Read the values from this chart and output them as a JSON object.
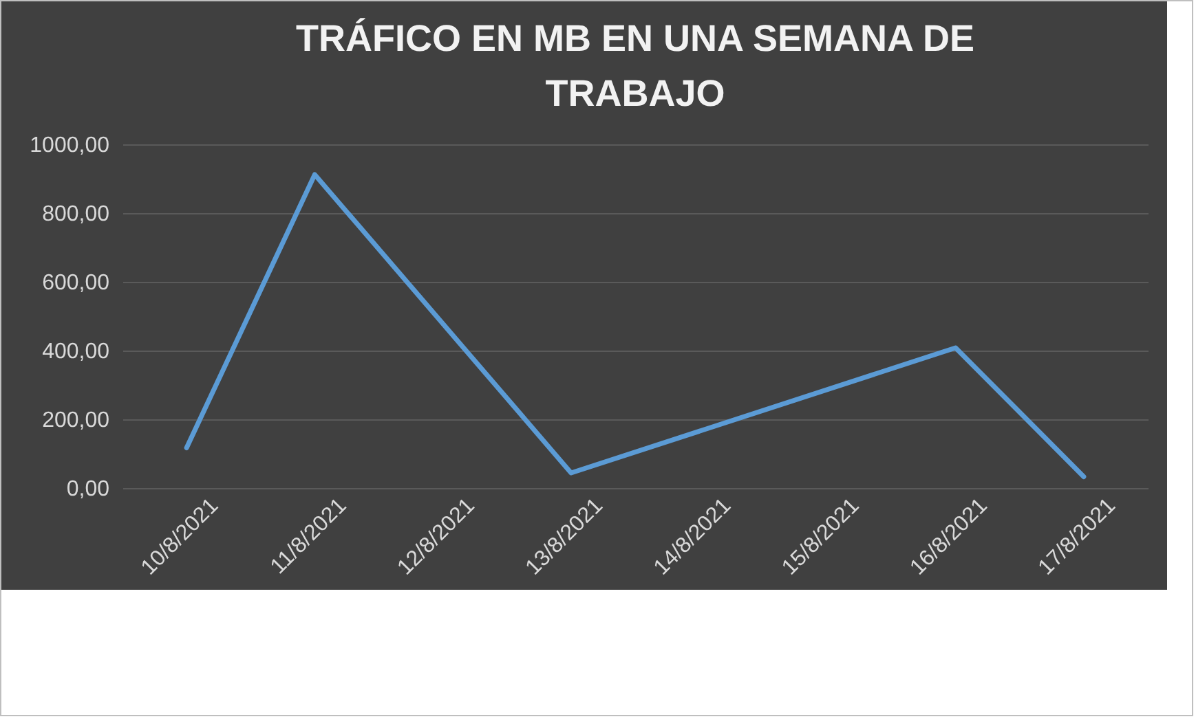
{
  "chart_data": {
    "type": "line",
    "title": [
      "TRÁFICO EN MB EN UNA SEMANA DE",
      "TRABAJO"
    ],
    "x": [
      "2021-08-10",
      "2021-08-11",
      "2021-08-13",
      "2021-08-16",
      "2021-08-17"
    ],
    "series": [
      {
        "color": "#5b9bd5",
        "values": [
          117,
          912,
          44,
          408,
          33
        ]
      }
    ],
    "xlim": [
      "2021-08-09T12:00",
      "2021-08-17T12:00"
    ],
    "xticks": [
      {
        "value": "2021-08-10",
        "label": "10/8/2021"
      },
      {
        "value": "2021-08-11",
        "label": "11/8/2021"
      },
      {
        "value": "2021-08-12",
        "label": "12/8/2021"
      },
      {
        "value": "2021-08-13",
        "label": "13/8/2021"
      },
      {
        "value": "2021-08-14",
        "label": "14/8/2021"
      },
      {
        "value": "2021-08-15",
        "label": "15/8/2021"
      },
      {
        "value": "2021-08-16",
        "label": "16/8/2021"
      },
      {
        "value": "2021-08-17",
        "label": "17/8/2021"
      }
    ],
    "ylim": [
      0,
      1000
    ],
    "yticks": [
      {
        "value": 0,
        "label": "0,00"
      },
      {
        "value": 200,
        "label": "200,00"
      },
      {
        "value": 400,
        "label": "400,00"
      },
      {
        "value": 600,
        "label": "600,00"
      },
      {
        "value": 800,
        "label": "800,00"
      },
      {
        "value": 1000,
        "label": "1000,00"
      }
    ],
    "grid": "y",
    "marker": "none",
    "line_style": "solid"
  }
}
